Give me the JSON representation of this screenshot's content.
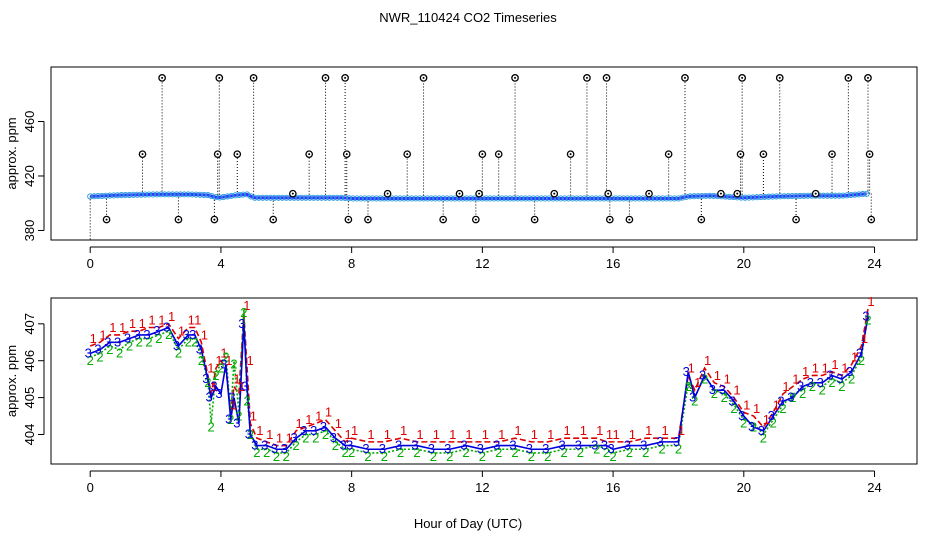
{
  "figure": {
    "title": "NWR_110424  CO2 Timeseries",
    "xlabel": "Hour of Day (UTC)"
  },
  "chart_data": [
    {
      "type": "scatter",
      "panel": "top",
      "title": "",
      "xlabel": "",
      "ylabel": "approx. ppm",
      "xlim": [
        -1.2,
        25.3
      ],
      "ylim": [
        373,
        500
      ],
      "xticks": [
        0,
        4,
        8,
        12,
        16,
        20,
        24
      ],
      "yticks": [
        380,
        420,
        460
      ],
      "colors": {
        "base_line": "#3333ff",
        "base_points": "#2299dd",
        "spikes": "#000000"
      },
      "baseline": {
        "description": "dense continuous trace of ~406 ppm averages",
        "x": [
          0,
          1,
          2,
          3,
          3.6,
          3.9,
          4.2,
          4.5,
          4.8,
          5,
          5.5,
          6,
          7,
          7.7,
          8,
          9,
          10,
          11,
          12,
          13,
          14,
          15,
          16,
          17,
          18,
          18.3,
          19,
          20,
          21,
          22,
          23,
          23.8
        ],
        "y": [
          405,
          406,
          406.5,
          406.5,
          406,
          404,
          405,
          406,
          406.5,
          404,
          404,
          404,
          404,
          404,
          403.5,
          403.5,
          403.5,
          403.5,
          403.5,
          403.5,
          403.5,
          403.5,
          403.5,
          403.5,
          403.5,
          405,
          405.5,
          404,
          405,
          405.5,
          405.5,
          407
        ]
      },
      "spikes": {
        "description": "outlier readings drawn as circled points joined to the baseline by dotted lines",
        "x": [
          0.5,
          1.6,
          2.2,
          2.7,
          3.8,
          3.9,
          3.95,
          4.5,
          5.0,
          5.6,
          6.2,
          6.7,
          7.2,
          7.8,
          7.85,
          7.9,
          8.5,
          9.1,
          9.7,
          10.2,
          10.8,
          11.3,
          11.8,
          11.9,
          12.0,
          12.5,
          13.0,
          13.6,
          14.2,
          14.7,
          15.2,
          15.8,
          15.85,
          15.9,
          16.5,
          17.1,
          17.7,
          18.2,
          18.7,
          19.3,
          19.8,
          19.9,
          19.95,
          20.6,
          21.1,
          21.6,
          22.2,
          22.7,
          23.2,
          23.8,
          23.85,
          23.9
        ],
        "y": [
          388,
          436,
          492,
          388,
          388,
          436,
          492,
          436,
          492,
          388,
          407,
          436,
          492,
          492,
          436,
          388,
          388,
          407,
          436,
          492,
          388,
          407,
          388,
          407,
          436,
          436,
          492,
          388,
          407,
          436,
          492,
          492,
          407,
          388,
          388,
          407,
          436,
          492,
          388,
          407,
          407,
          436,
          492,
          436,
          492,
          388,
          407,
          436,
          492,
          492,
          436,
          388
        ]
      }
    },
    {
      "type": "line",
      "panel": "bottom",
      "title": "",
      "xlabel": "",
      "ylabel": "approx. ppm",
      "xlim": [
        -1.2,
        25.3
      ],
      "ylim": [
        403.2,
        407.7
      ],
      "xticks": [
        0,
        4,
        8,
        12,
        16,
        20,
        24
      ],
      "yticks": [
        404,
        405,
        406,
        407
      ],
      "x": [
        0,
        0.3,
        0.6,
        0.9,
        1.2,
        1.5,
        1.8,
        2.1,
        2.4,
        2.7,
        3.0,
        3.2,
        3.4,
        3.6,
        3.7,
        3.85,
        4.0,
        4.15,
        4.3,
        4.4,
        4.55,
        4.7,
        4.8,
        4.9,
        5.1,
        5.4,
        5.7,
        6.0,
        6.3,
        6.6,
        6.9,
        7.2,
        7.5,
        7.8,
        8.0,
        8.5,
        9.0,
        9.5,
        10.0,
        10.5,
        11.0,
        11.5,
        12.0,
        12.5,
        13.0,
        13.5,
        14.0,
        14.5,
        15.0,
        15.5,
        15.8,
        16.0,
        16.5,
        17.0,
        17.5,
        18.0,
        18.3,
        18.5,
        18.8,
        19.1,
        19.4,
        19.7,
        20.0,
        20.3,
        20.6,
        20.9,
        21.2,
        21.5,
        21.8,
        22.1,
        22.4,
        22.7,
        23.0,
        23.3,
        23.6,
        23.8
      ],
      "series": [
        {
          "name": "1",
          "color": "#dd0000",
          "values": [
            406.4,
            406.5,
            406.7,
            406.7,
            406.8,
            406.8,
            406.9,
            406.9,
            407.0,
            406.6,
            406.9,
            406.9,
            406.5,
            405.6,
            405.1,
            405.8,
            406.0,
            405.8,
            404.6,
            405.3,
            405.1,
            407.3,
            405.8,
            404.3,
            403.9,
            403.8,
            403.7,
            403.7,
            404.1,
            404.2,
            404.3,
            404.4,
            404.1,
            403.8,
            403.9,
            403.8,
            403.8,
            403.9,
            403.8,
            403.8,
            403.8,
            403.8,
            403.8,
            403.8,
            403.9,
            403.8,
            403.8,
            403.9,
            403.9,
            403.9,
            403.8,
            403.8,
            403.8,
            403.9,
            403.9,
            403.9,
            405.6,
            405.2,
            405.8,
            405.4,
            405.3,
            405.0,
            404.6,
            404.5,
            404.2,
            404.6,
            405.1,
            405.3,
            405.5,
            405.6,
            405.6,
            405.7,
            405.6,
            405.9,
            406.4,
            407.4
          ]
        },
        {
          "name": "2",
          "color": "#00aa00",
          "values": [
            406.1,
            406.2,
            406.4,
            406.3,
            406.5,
            406.6,
            406.6,
            406.7,
            406.8,
            406.3,
            406.6,
            406.6,
            406.1,
            405.5,
            404.3,
            405.7,
            405.9,
            406.2,
            404.5,
            406.0,
            404.6,
            407.4,
            405.0,
            404.1,
            403.6,
            403.6,
            403.5,
            403.5,
            403.8,
            404.0,
            404.0,
            404.1,
            403.8,
            403.6,
            403.6,
            403.5,
            403.5,
            403.6,
            403.6,
            403.5,
            403.5,
            403.6,
            403.5,
            403.6,
            403.6,
            403.5,
            403.5,
            403.6,
            403.6,
            403.7,
            403.6,
            403.5,
            403.6,
            403.6,
            403.7,
            403.7,
            405.4,
            405.0,
            405.6,
            405.2,
            405.1,
            404.8,
            404.4,
            404.3,
            404.0,
            404.4,
            404.8,
            405.1,
            405.2,
            405.4,
            405.3,
            405.5,
            405.4,
            405.6,
            406.1,
            407.2
          ]
        },
        {
          "name": "3",
          "color": "#0000dd",
          "values": [
            406.2,
            406.3,
            406.5,
            406.5,
            406.6,
            406.7,
            406.7,
            406.8,
            406.9,
            406.4,
            406.7,
            406.7,
            406.3,
            405.5,
            405.0,
            405.3,
            405.1,
            405.9,
            404.4,
            405.0,
            404.3,
            407.0,
            405.3,
            404.0,
            403.7,
            403.7,
            403.6,
            403.6,
            403.9,
            404.1,
            404.1,
            404.2,
            403.9,
            403.7,
            403.7,
            403.6,
            403.6,
            403.7,
            403.7,
            403.6,
            403.6,
            403.7,
            403.6,
            403.7,
            403.7,
            403.6,
            403.6,
            403.7,
            403.7,
            403.7,
            403.7,
            403.6,
            403.7,
            403.7,
            403.8,
            403.8,
            405.7,
            405.0,
            405.6,
            405.2,
            405.2,
            404.9,
            404.5,
            404.2,
            404.1,
            404.5,
            404.9,
            405.0,
            405.3,
            405.4,
            405.4,
            405.6,
            405.5,
            405.7,
            406.2,
            407.2
          ]
        }
      ]
    }
  ]
}
